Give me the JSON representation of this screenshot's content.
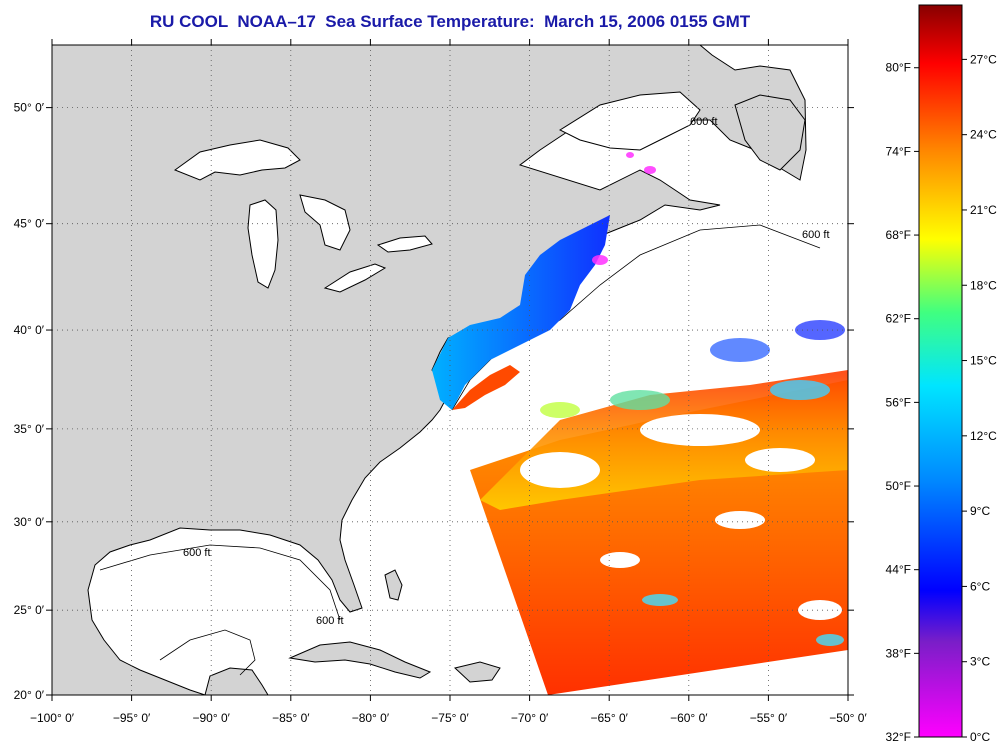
{
  "title": "RU COOL  NOAA–17  Sea Surface Temperature:  March 15, 2006 0155 GMT",
  "map": {
    "lon_range": [
      -100,
      -50
    ],
    "lat_range": [
      20,
      52.5
    ],
    "lon_ticks": [
      "−100° 0′",
      "−95° 0′",
      "−90° 0′",
      "−85° 0′",
      "−80° 0′",
      "−75° 0′",
      "−70° 0′",
      "−65° 0′",
      "−60° 0′",
      "−55° 0′",
      "−50° 0′"
    ],
    "lat_ticks": [
      "20° 0′",
      "25° 0′",
      "30° 0′",
      "35° 0′",
      "40° 0′",
      "45° 0′",
      "50° 0′"
    ],
    "contour_label": "600 ft",
    "colors": {
      "land": "#d3d3d3",
      "ocean": "#ffffff",
      "grid": "#555555"
    }
  },
  "colorbar": {
    "fahrenheit_labels": [
      "80°F",
      "74°F",
      "68°F",
      "62°F",
      "56°F",
      "50°F",
      "44°F",
      "38°F",
      "32°F"
    ],
    "celsius_labels": [
      "27°C",
      "24°C",
      "21°C",
      "18°C",
      "15°C",
      "12°C",
      "9°C",
      "6°C",
      "3°C",
      "0°C"
    ],
    "stops": [
      "#ff00ff",
      "#7a1ec8",
      "#0000ff",
      "#0088ff",
      "#00e5ff",
      "#40ff80",
      "#ffff00",
      "#ff8800",
      "#ff0000",
      "#880000"
    ]
  }
}
